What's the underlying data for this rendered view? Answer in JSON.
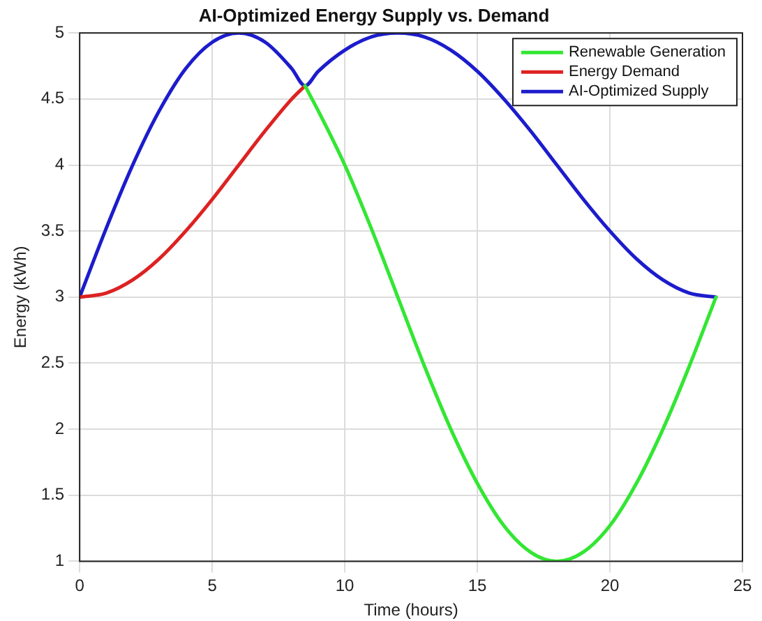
{
  "chart_data": {
    "type": "line",
    "title": "AI-Optimized Energy Supply vs. Demand",
    "xlabel": "Time (hours)",
    "ylabel": "Energy (kWh)",
    "x": [
      0,
      1,
      2,
      3,
      4,
      5,
      6,
      7,
      8,
      8.5,
      9,
      10,
      11,
      12,
      13,
      14,
      15,
      16,
      17,
      18,
      19,
      20,
      21,
      22,
      23,
      24
    ],
    "series": [
      {
        "name": "Renewable Generation",
        "color": "#33e633",
        "values": [
          null,
          null,
          null,
          null,
          null,
          null,
          null,
          null,
          null,
          4.6,
          4.41,
          4.0,
          3.52,
          3.0,
          2.48,
          2.0,
          1.59,
          1.27,
          1.07,
          1.0,
          1.07,
          1.27,
          1.59,
          2.0,
          2.48,
          3.0
        ]
      },
      {
        "name": "Energy Demand",
        "color": "#dd2222",
        "values": [
          3.0,
          3.03,
          3.13,
          3.29,
          3.5,
          3.74,
          4.0,
          4.26,
          4.5,
          4.6,
          null,
          null,
          null,
          null,
          null,
          null,
          null,
          null,
          null,
          null,
          null,
          null,
          null,
          null,
          null,
          null
        ]
      },
      {
        "name": "AI-Optimized Supply",
        "color": "#1c1ccc",
        "values": [
          3.0,
          3.52,
          4.0,
          4.41,
          4.73,
          4.93,
          5.0,
          4.93,
          4.73,
          4.6,
          4.71,
          4.87,
          4.97,
          5.0,
          4.97,
          4.87,
          4.71,
          4.5,
          4.26,
          4.0,
          3.74,
          3.5,
          3.29,
          3.13,
          3.03,
          3.0
        ]
      }
    ],
    "xlim": [
      0,
      25
    ],
    "xticks": [
      0,
      5,
      10,
      15,
      20,
      25
    ],
    "ylim": [
      1,
      5
    ],
    "yticks": [
      1,
      1.5,
      2,
      2.5,
      3,
      3.5,
      4,
      4.5,
      5
    ],
    "grid": true,
    "legend": "top right",
    "marker": "none",
    "line_style": "solid"
  }
}
